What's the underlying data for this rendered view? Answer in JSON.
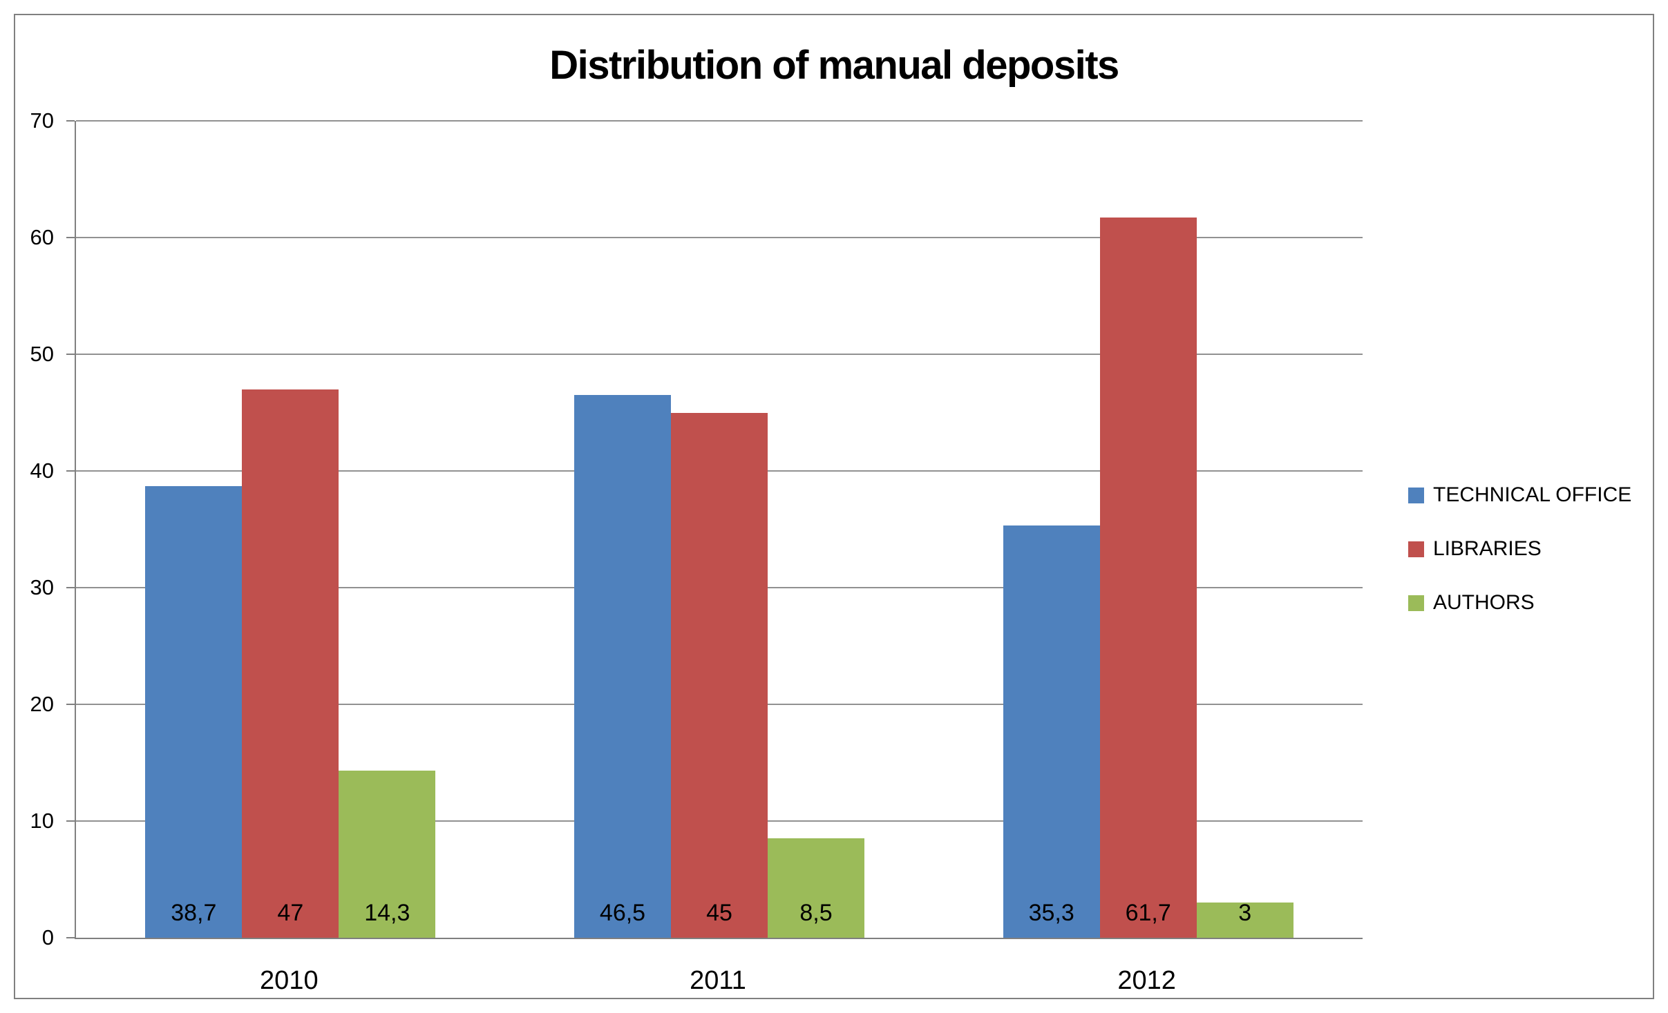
{
  "chart_data": {
    "type": "bar",
    "title": "Distribution of manual deposits",
    "categories": [
      "2010",
      "2011",
      "2012"
    ],
    "series": [
      {
        "name": "TECHNICAL OFFICE",
        "color": "#4F81BD",
        "values": [
          38.7,
          46.5,
          35.3
        ],
        "labels": [
          "38,7",
          "46,5",
          "35,3"
        ]
      },
      {
        "name": "LIBRARIES",
        "color": "#C0504D",
        "values": [
          47,
          45,
          61.7
        ],
        "labels": [
          "47",
          "45",
          "61,7"
        ]
      },
      {
        "name": "AUTHORS",
        "color": "#9BBB59",
        "values": [
          14.3,
          8.5,
          3
        ],
        "labels": [
          "14,3",
          "8,5",
          "3"
        ]
      }
    ],
    "xlabel": "",
    "ylabel": "",
    "ylim": [
      0,
      70
    ],
    "ytick_step": 10,
    "yticks": [
      "0",
      "10",
      "20",
      "30",
      "40",
      "50",
      "60",
      "70"
    ],
    "grid": true,
    "legend_position": "right",
    "axis_color": "#7F7F7F",
    "gridline_color": "#919191",
    "border_color": "#808080",
    "text_color": "#000000"
  }
}
